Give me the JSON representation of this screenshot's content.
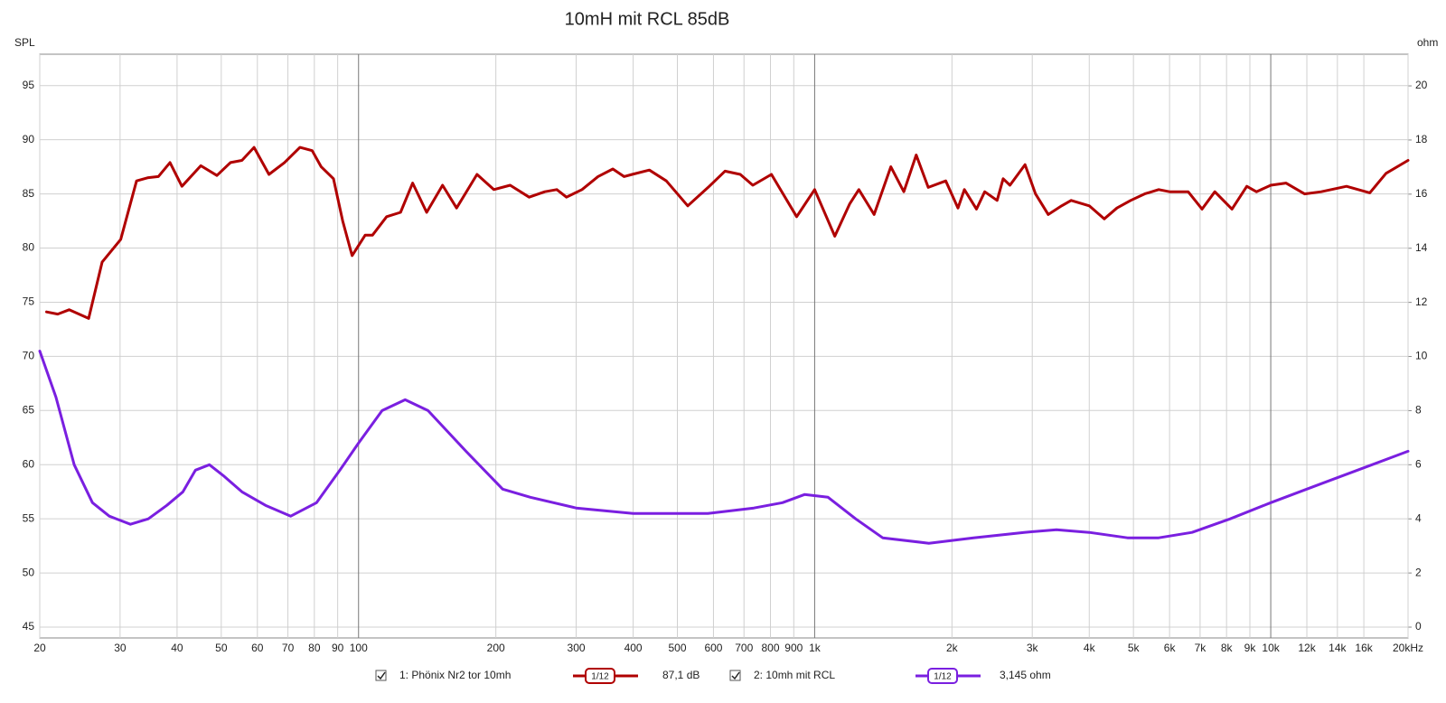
{
  "chart_data": {
    "type": "line",
    "title": "10mH mit RCL 85dB",
    "ylabel": "SPL",
    "y2label": "ohm",
    "xscale": "log",
    "grid": true,
    "xlim": [
      20,
      20000
    ],
    "xticks": [
      20,
      30,
      40,
      50,
      60,
      70,
      80,
      90,
      100,
      200,
      300,
      400,
      500,
      600,
      700,
      800,
      900,
      {
        "value": 1000,
        "label": "1k"
      },
      {
        "value": 2000,
        "label": "2k"
      },
      {
        "value": 3000,
        "label": "3k"
      },
      {
        "value": 4000,
        "label": "4k"
      },
      {
        "value": 5000,
        "label": "5k"
      },
      {
        "value": 6000,
        "label": "6k"
      },
      {
        "value": 7000,
        "label": "7k"
      },
      {
        "value": 8000,
        "label": "8k"
      },
      {
        "value": 9000,
        "label": "9k"
      },
      {
        "value": 10000,
        "label": "10k"
      },
      {
        "value": 12000,
        "label": "12k"
      },
      {
        "value": 14000,
        "label": "14k"
      },
      {
        "value": 16000,
        "label": "16k"
      },
      {
        "value": 20000,
        "label": "20kHz"
      }
    ],
    "ylim": [
      44,
      97.9
    ],
    "yticks": [
      45,
      50,
      55,
      60,
      65,
      70,
      75,
      80,
      85,
      90,
      95
    ],
    "y2lim": [
      -0.4,
      21.17
    ],
    "y2ticks": [
      0,
      2,
      4,
      6,
      8,
      10,
      12,
      14,
      16,
      18,
      20
    ],
    "series": [
      {
        "name": "1: Phönix Nr2 tor 10mh",
        "color": "#b00000",
        "smoothing": "1/12",
        "readout": "87,1 dB",
        "x": [
          20.7,
          21.9,
          23.2,
          25.6,
          27.4,
          30.1,
          32.6,
          34.6,
          36.4,
          38.6,
          41.0,
          45.1,
          48.9,
          52.4,
          55.5,
          59.0,
          63.6,
          68.8,
          74.4,
          79.1,
          82.8,
          88.1,
          92.3,
          96.8,
          103.4,
          107.3,
          115.2,
          123.6,
          131.4,
          141,
          152.8,
          164,
          181.8,
          197.9,
          215,
          236.6,
          256,
          272,
          285.6,
          309,
          335,
          361,
          382,
          398,
          434,
          473,
          527,
          584,
          636,
          687,
          732,
          804,
          913,
          1000,
          1107,
          1194,
          1250,
          1350,
          1469,
          1569,
          1670,
          1774,
          1939,
          2062,
          2130,
          2264,
          2360,
          2512,
          2590,
          2680,
          2892,
          3050,
          3252,
          3480,
          3650,
          4000,
          4316,
          4600,
          4930,
          5290,
          5680,
          6000,
          6592,
          7072,
          7540,
          8222,
          8861,
          9300,
          10000,
          10800,
          11860,
          12900,
          14660,
          16490,
          17900,
          20000
        ],
        "values": [
          74.1,
          73.9,
          74.3,
          73.5,
          78.7,
          80.8,
          86.2,
          86.5,
          86.6,
          87.9,
          85.7,
          87.6,
          86.7,
          87.9,
          88.1,
          89.3,
          86.8,
          87.9,
          89.3,
          89.0,
          87.5,
          86.4,
          82.5,
          79.3,
          81.2,
          81.2,
          82.9,
          83.3,
          86.0,
          83.3,
          85.8,
          83.7,
          86.8,
          85.4,
          85.8,
          84.7,
          85.2,
          85.4,
          84.7,
          85.4,
          86.6,
          87.3,
          86.6,
          86.8,
          87.2,
          86.2,
          83.9,
          85.6,
          87.1,
          86.8,
          85.8,
          86.8,
          82.9,
          85.4,
          81.1,
          84.1,
          85.4,
          83.1,
          87.5,
          85.2,
          88.6,
          85.6,
          86.2,
          83.7,
          85.4,
          83.6,
          85.2,
          84.4,
          86.4,
          85.8,
          87.7,
          85.0,
          83.1,
          83.9,
          84.4,
          83.9,
          82.7,
          83.7,
          84.4,
          85.0,
          85.4,
          85.2,
          85.2,
          83.6,
          85.2,
          83.6,
          85.7,
          85.2,
          85.8,
          86.0,
          85.0,
          85.2,
          85.7,
          85.1,
          86.9,
          88.1
        ]
      },
      {
        "name": "2: 10mh mit RCL",
        "color": "#7a1fe0",
        "smoothing": "1/12",
        "readout": "3,145 ohm",
        "axis": "y2",
        "x": [
          20,
          21.7,
          23.8,
          26.1,
          28.4,
          31.6,
          34.6,
          38.0,
          41.2,
          43.9,
          47.1,
          50.5,
          55.5,
          62.5,
          71,
          80.9,
          91,
          100,
          112.6,
          126.5,
          142,
          172,
          207,
          238,
          300,
          400,
          583,
          736,
          850,
          950,
          1070,
          1230,
          1410,
          1780,
          2230,
          2880,
          3390,
          4000,
          4850,
          5680,
          6720,
          8150,
          10000,
          12900,
          15500,
          20000
        ],
        "values": [
          10.2,
          8.5,
          6.0,
          4.6,
          4.1,
          3.8,
          4.0,
          4.5,
          5.0,
          5.8,
          6.0,
          5.6,
          5.0,
          4.5,
          4.1,
          4.6,
          5.8,
          6.8,
          8.0,
          8.4,
          8.0,
          6.5,
          5.1,
          4.8,
          4.4,
          4.2,
          4.2,
          4.4,
          4.6,
          4.9,
          4.8,
          4.0,
          3.3,
          3.1,
          3.3,
          3.5,
          3.6,
          3.5,
          3.3,
          3.3,
          3.5,
          4.0,
          4.6,
          5.3,
          5.8,
          6.5
        ]
      }
    ]
  }
}
